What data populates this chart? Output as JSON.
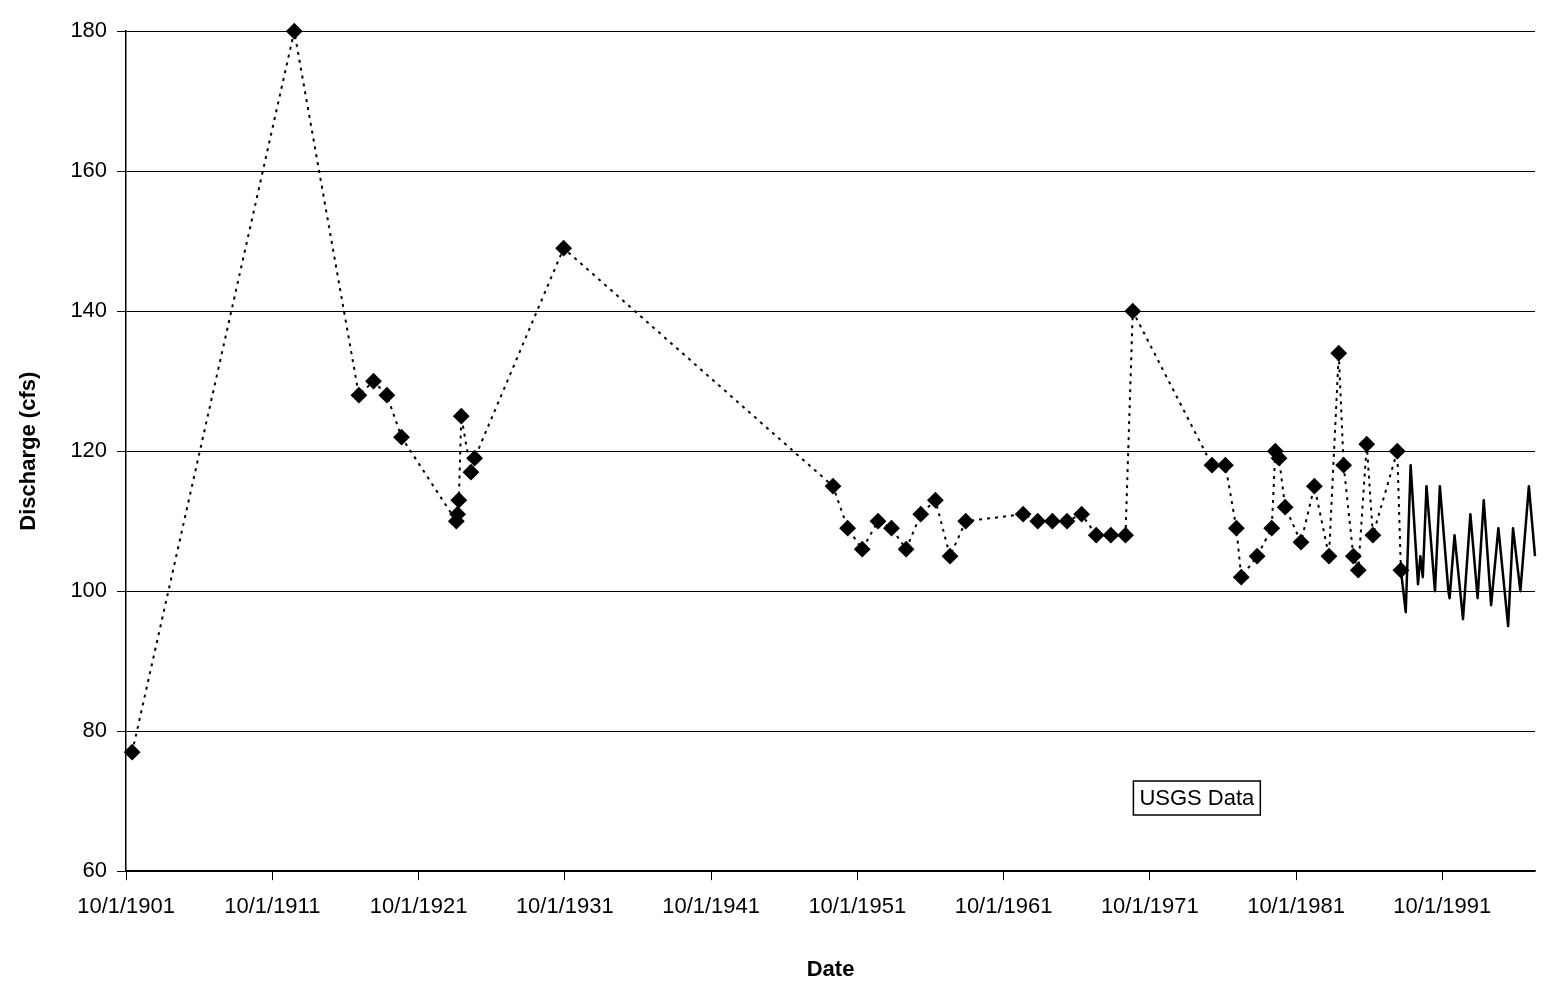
{
  "chart_data": {
    "type": "line",
    "xlabel": "Date",
    "ylabel": "Discharge (cfs)",
    "annotations": [
      "USGS Data"
    ],
    "grid": "y",
    "xlim": [
      "1901-10-01",
      "1998-02-01"
    ],
    "xticks": [
      {
        "value": "1901-10-01",
        "label": "10/1/1901"
      },
      {
        "value": "1911-10-01",
        "label": "10/1/1911"
      },
      {
        "value": "1921-10-01",
        "label": "10/1/1921"
      },
      {
        "value": "1931-10-01",
        "label": "10/1/1931"
      },
      {
        "value": "1941-10-01",
        "label": "10/1/1941"
      },
      {
        "value": "1951-10-01",
        "label": "10/1/1951"
      },
      {
        "value": "1961-10-01",
        "label": "10/1/1961"
      },
      {
        "value": "1971-10-01",
        "label": "10/1/1971"
      },
      {
        "value": "1981-10-01",
        "label": "10/1/1981"
      },
      {
        "value": "1991-10-01",
        "label": "10/1/1991"
      }
    ],
    "ylim": [
      60,
      180
    ],
    "yticks": [
      60,
      80,
      100,
      120,
      140,
      160,
      180
    ],
    "series": [
      {
        "color": "#000000",
        "line_style": "dotted",
        "marker": "diamond",
        "x": [
          "1902-03",
          "1913-04",
          "1917-09",
          "1918-09",
          "1919-08",
          "1920-08",
          "1924-05",
          "1924-06",
          "1924-07",
          "1924-09",
          "1925-05",
          "1925-08",
          "1931-09",
          "1950-02",
          "1951-02",
          "1952-02",
          "1953-03",
          "1954-02",
          "1955-02",
          "1956-02",
          "1957-02",
          "1958-02",
          "1959-03",
          "1963-02",
          "1964-02",
          "1965-02",
          "1966-02",
          "1967-02",
          "1968-02",
          "1969-02",
          "1970-02",
          "1970-08",
          "1976-01",
          "1976-12",
          "1977-09",
          "1978-01",
          "1979-02",
          "1980-02",
          "1980-05",
          "1980-08",
          "1981-01",
          "1982-02",
          "1983-01",
          "1984-01",
          "1984-09",
          "1985-01",
          "1985-09",
          "1986-01",
          "1986-08",
          "1987-01",
          "1988-09",
          "1988-12"
        ],
        "values": [
          77,
          180,
          128,
          130,
          128,
          122,
          110,
          111,
          113,
          125,
          117,
          119,
          149,
          115,
          109,
          106,
          110,
          109,
          106,
          111,
          113,
          105,
          110,
          111,
          110,
          110,
          110,
          111,
          108,
          108,
          108,
          140,
          118,
          118,
          109,
          102,
          105,
          109,
          120,
          119,
          112,
          107,
          115,
          105,
          134,
          118,
          105,
          103,
          121,
          108,
          120,
          103
        ]
      },
      {
        "color": "#000000",
        "line_style": "solid",
        "marker": "none",
        "x": [
          "1988-12",
          "1989-04",
          "1989-08",
          "1990-02",
          "1990-04",
          "1990-06",
          "1990-09",
          "1991-04",
          "1991-08",
          "1992-03",
          "1992-04",
          "1992-08",
          "1993-03",
          "1993-09",
          "1994-03",
          "1994-08",
          "1995-02",
          "1995-08",
          "1996-04",
          "1996-08",
          "1997-02",
          "1997-09",
          "1998-02"
        ],
        "values": [
          103,
          97,
          118,
          101,
          105,
          102,
          115,
          100,
          115,
          100,
          99,
          108,
          96,
          111,
          99,
          113,
          98,
          109,
          95,
          109,
          100,
          115,
          105
        ]
      }
    ]
  }
}
